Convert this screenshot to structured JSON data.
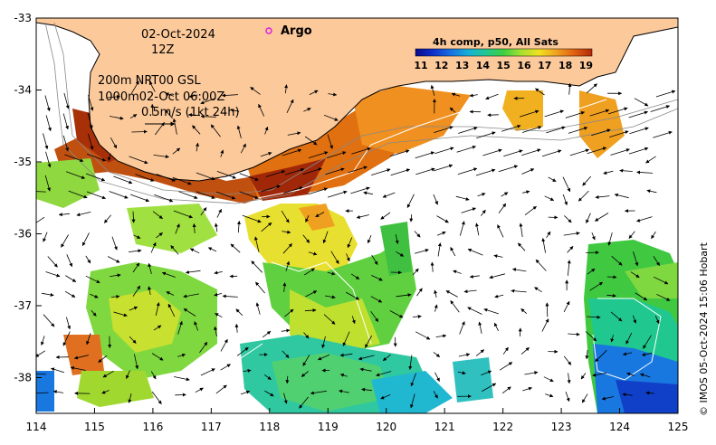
{
  "map": {
    "date": "02-Oct-2024",
    "time": "12Z",
    "depth_info_1": "200m  NRT00 GSL",
    "depth_info_2": "1000m02-Oct 06:00Z",
    "scale_vector": "0.5m/s (1kt 24h)",
    "argo_label": "Argo",
    "credit": "© IMOS 05-Oct-2024 15:06 Hobart",
    "colors": {
      "land": "#fcc99b",
      "argo_marker": "#e020e0",
      "contour": "#ffffff"
    }
  },
  "axes": {
    "x_ticks": [
      "114",
      "115",
      "116",
      "117",
      "118",
      "119",
      "120",
      "121",
      "122",
      "123",
      "124",
      "125"
    ],
    "y_ticks": [
      "-33",
      "-34",
      "-35",
      "-36",
      "-37",
      "-38"
    ]
  },
  "legend": {
    "title": "4h comp, p50, All Sats",
    "labels": [
      "11",
      "12",
      "13",
      "14",
      "15",
      "16",
      "17",
      "18",
      "19"
    ],
    "colors": [
      "#0a0a8c",
      "#1030c8",
      "#1870e0",
      "#18b0d8",
      "#20c890",
      "#40d040",
      "#a8e030",
      "#f0e020",
      "#f0a020",
      "#e06010",
      "#b02808"
    ]
  }
}
